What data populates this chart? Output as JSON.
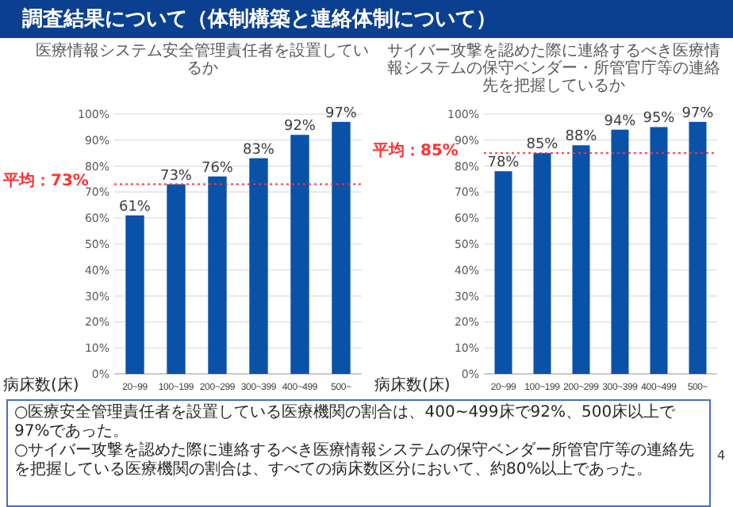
{
  "chart_data": [
    {
      "type": "bar",
      "title": "医療情報システム安全管理責任者を設置しているか",
      "xlabel": "病床数(床)",
      "categories": [
        "20~99",
        "100~199",
        "200~299",
        "300~399",
        "400~499",
        "500~"
      ],
      "values": [
        61,
        73,
        76,
        83,
        92,
        97
      ],
      "value_labels": [
        "61%",
        "73%",
        "76%",
        "83%",
        "92%",
        "97%"
      ],
      "color": "#0a52a8",
      "ylim": [
        0,
        100
      ],
      "yticks": [
        {
          "value": 0,
          "label": "0%"
        },
        {
          "value": 10,
          "label": "10%"
        },
        {
          "value": 20,
          "label": "20%"
        },
        {
          "value": 30,
          "label": "30%"
        },
        {
          "value": 40,
          "label": "40%"
        },
        {
          "value": 50,
          "label": "50%"
        },
        {
          "value": 60,
          "label": "60%"
        },
        {
          "value": 70,
          "label": "70%"
        },
        {
          "value": 80,
          "label": "80%"
        },
        {
          "value": 90,
          "label": "90%"
        },
        {
          "value": 100,
          "label": "100%"
        }
      ],
      "grid": "y",
      "ref_lines": [
        {
          "axis": "y",
          "value": 73,
          "label": "平均：73%",
          "color": "#ff3333",
          "line_style": "dotted"
        }
      ],
      "annotations": [
        "調査結果について（体制構築と連絡体制について）"
      ]
    },
    {
      "type": "bar",
      "title": "サイバー攻撃を認めた際に連絡するべき医療情報システムの保守ベンダー・所管官庁等の連絡先を把握しているか",
      "xlabel": "病床数(床)",
      "categories": [
        "20~99",
        "100~199",
        "200~299",
        "300~399",
        "400~499",
        "500~"
      ],
      "values": [
        78,
        85,
        88,
        94,
        95,
        97
      ],
      "value_labels": [
        "78%",
        "85%",
        "88%",
        "94%",
        "95%",
        "97%"
      ],
      "color": "#0a52a8",
      "ylim": [
        0,
        100
      ],
      "yticks": [
        {
          "value": 0,
          "label": "0%"
        },
        {
          "value": 10,
          "label": "10%"
        },
        {
          "value": 20,
          "label": "20%"
        },
        {
          "value": 30,
          "label": "30%"
        },
        {
          "value": 40,
          "label": "40%"
        },
        {
          "value": 50,
          "label": "50%"
        },
        {
          "value": 60,
          "label": "60%"
        },
        {
          "value": 70,
          "label": "70%"
        },
        {
          "value": 80,
          "label": "80%"
        },
        {
          "value": 90,
          "label": "90%"
        },
        {
          "value": 100,
          "label": "100%"
        }
      ],
      "grid": "y",
      "ref_lines": [
        {
          "axis": "y",
          "value": 85,
          "label": "平均：85%",
          "color": "#ff3333",
          "line_style": "dotted"
        }
      ],
      "annotations": [
        "○医療安全管理責任者を設置している医療機関の割合は、400~499床で92%、500床以上で97%であった。",
        "○サイバー攻撃を認めた際に連絡するべき医療情報システムの保守ベンダー所管官庁等の連絡先を把握している医療機関の割合は、すべての病床数区分において、約80%以上であった。",
        "4"
      ]
    }
  ]
}
